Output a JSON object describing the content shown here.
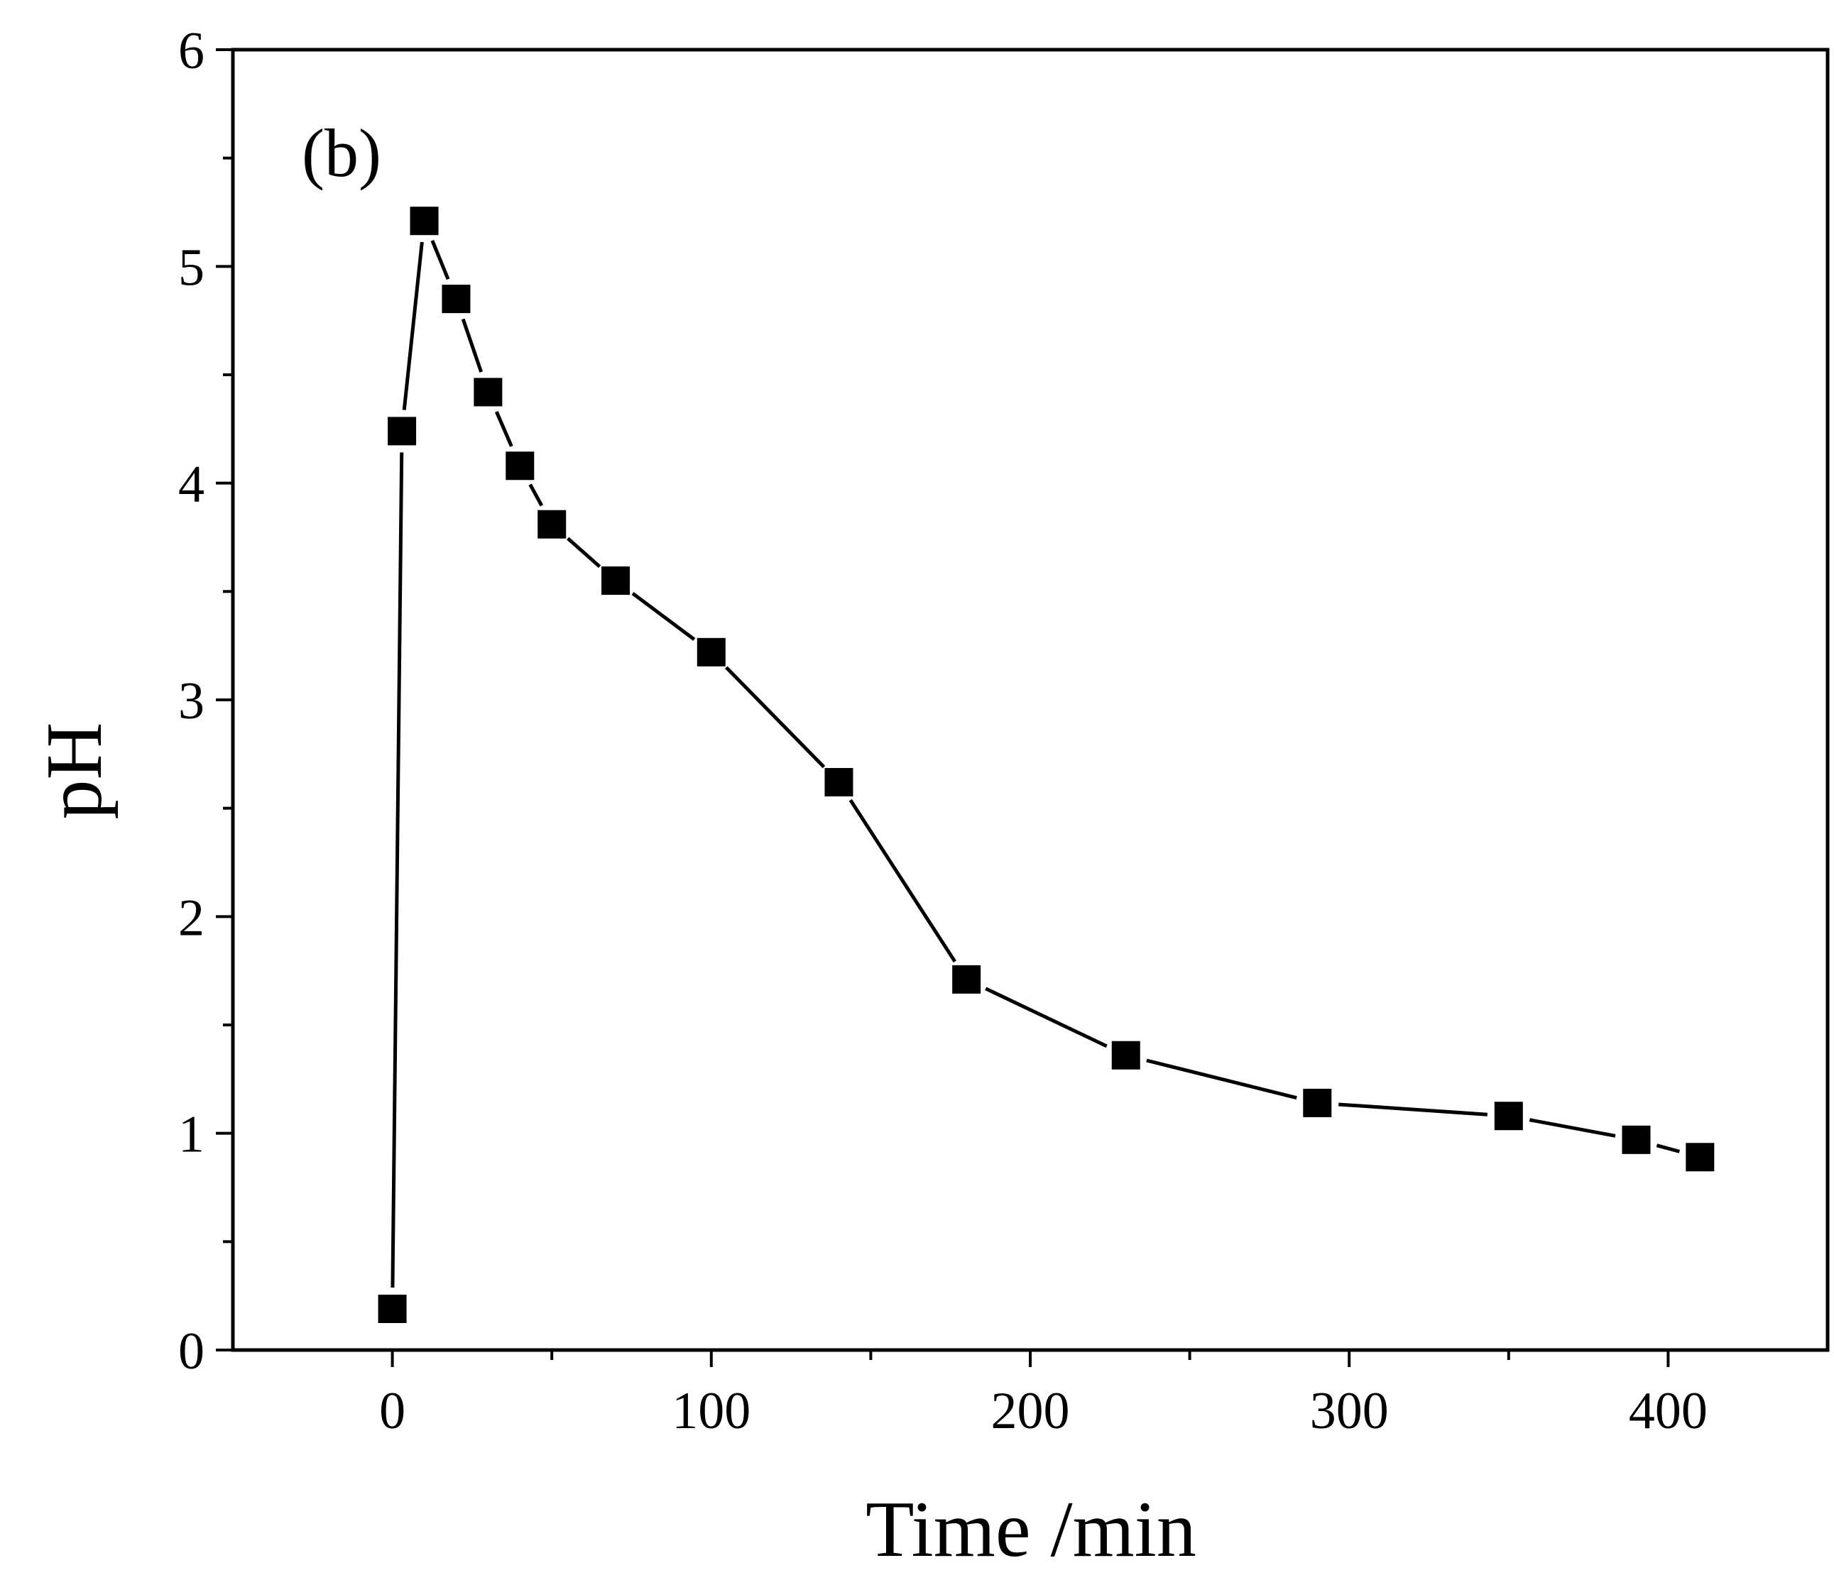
{
  "chart_data": {
    "type": "line",
    "title": "",
    "panel_label": "(b)",
    "xlabel": "Time /min",
    "ylabel": "pH",
    "xlim": [
      -50,
      450
    ],
    "ylim": [
      0,
      6
    ],
    "xticks": [
      0,
      100,
      200,
      300,
      400
    ],
    "xtick_labels": [
      "0",
      "100",
      "200",
      "300",
      "400"
    ],
    "xminor": [
      -50,
      50,
      150,
      250,
      350,
      450
    ],
    "yticks": [
      0,
      1,
      2,
      3,
      4,
      5,
      6
    ],
    "ytick_labels": [
      "0",
      "1",
      "2",
      "3",
      "4",
      "5",
      "6"
    ],
    "yminor": [
      0.5,
      1.5,
      2.5,
      3.5,
      4.5,
      5.5
    ],
    "grid": false,
    "marker": "filled-square",
    "series": [
      {
        "name": "pH",
        "x": [
          0,
          3,
          10,
          20,
          30,
          40,
          50,
          70,
          100,
          140,
          180,
          230,
          290,
          350,
          390,
          410
        ],
        "y": [
          0.19,
          4.24,
          5.21,
          4.85,
          4.42,
          4.08,
          3.81,
          3.55,
          3.22,
          2.62,
          1.71,
          1.36,
          1.14,
          1.08,
          0.97,
          0.89
        ]
      }
    ]
  }
}
